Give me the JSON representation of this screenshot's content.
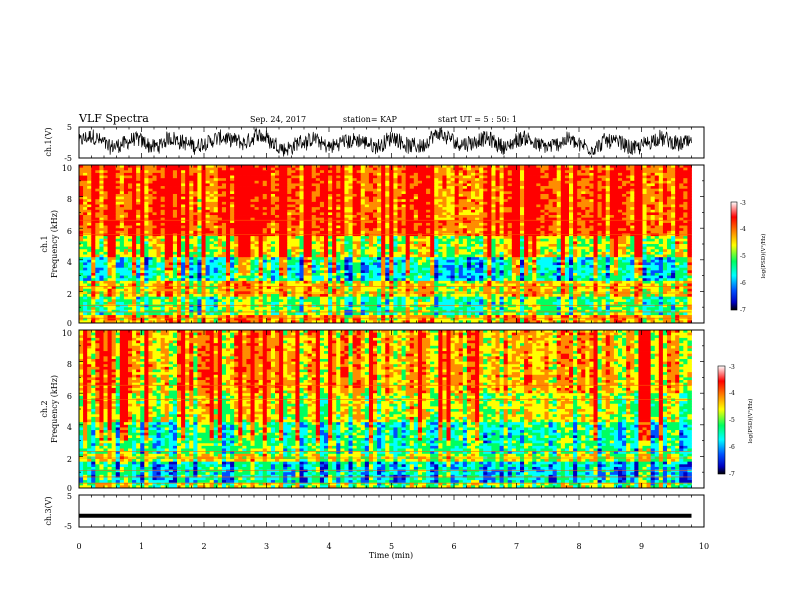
{
  "header": {
    "title": "VLF Spectra",
    "date": "Sep. 24, 2017",
    "station": "station= KAP",
    "start": "start  UT =   5 : 50: 1"
  },
  "colors": {
    "scale": [
      "#ffffff",
      "#ff0000",
      "#ff8c00",
      "#ffff00",
      "#00ff60",
      "#00ffff",
      "#0050ff",
      "#0000c0",
      "#000000"
    ],
    "trace": "#000000"
  },
  "chart_data": [
    {
      "type": "line",
      "name": "ch1-waveform",
      "ylabel": "ch.1(V)",
      "ylim": [
        -5,
        5
      ],
      "yticks": [
        "5",
        "-5"
      ],
      "xlim": [
        0,
        10
      ]
    },
    {
      "type": "heatmap",
      "name": "ch1-spectrogram",
      "ylabel": "ch.1",
      "ylabel2": "Frequency (kHz)",
      "ylim": [
        0,
        10
      ],
      "yticks": [
        "0",
        "2",
        "4",
        "6",
        "8",
        "10"
      ],
      "xlim": [
        0,
        10
      ],
      "colorbar": {
        "label": "log(PSD)(V²/Hz)",
        "range": [
          -7,
          -3
        ],
        "ticks": [
          "-3",
          "-4",
          "-5",
          "-6",
          "-7"
        ]
      }
    },
    {
      "type": "heatmap",
      "name": "ch2-spectrogram",
      "ylabel": "ch.2",
      "ylabel2": "Frequency (kHz)",
      "ylim": [
        0,
        10
      ],
      "yticks": [
        "0",
        "2",
        "4",
        "6",
        "8",
        "10"
      ],
      "xlim": [
        0,
        10
      ],
      "colorbar": {
        "label": "log(PSD)(V²/Hz)",
        "range": [
          -7,
          -3
        ],
        "ticks": [
          "-3",
          "-4",
          "-5",
          "-6",
          "-7"
        ]
      }
    },
    {
      "type": "line",
      "name": "ch3-waveform",
      "ylabel": "ch.3(V)",
      "ylim": [
        -5,
        5
      ],
      "yticks": [
        "5",
        "-5"
      ],
      "x": [
        0,
        9.8
      ],
      "y": [
        -1.5,
        -1.5
      ],
      "xlim": [
        0,
        10
      ],
      "xlabel": "Time  (min)",
      "xticks": [
        "0",
        "1",
        "2",
        "3",
        "4",
        "5",
        "6",
        "7",
        "8",
        "9",
        "10"
      ]
    }
  ]
}
